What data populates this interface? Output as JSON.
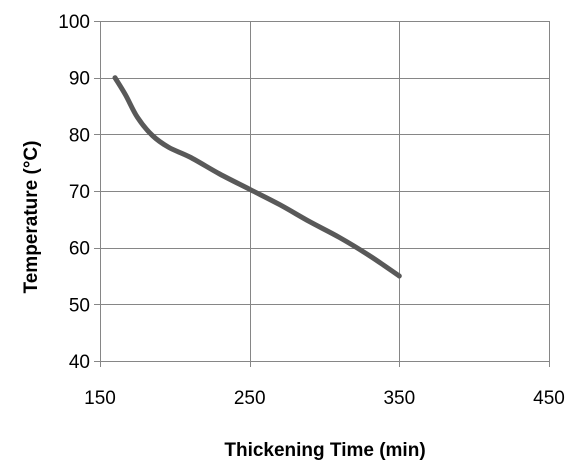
{
  "chart_data": {
    "type": "line",
    "title": "",
    "xlabel": "Thickening Time (min)",
    "ylabel": "Temperature (°C)",
    "xlim": [
      150,
      450
    ],
    "ylim": [
      40,
      100
    ],
    "x_ticks": [
      150,
      250,
      350,
      450
    ],
    "y_ticks": [
      40,
      50,
      60,
      70,
      80,
      90,
      100
    ],
    "x_tick_labels": [
      "150",
      "250",
      "350",
      "450"
    ],
    "y_tick_labels": [
      "40",
      "50",
      "60",
      "70",
      "80",
      "90",
      "100"
    ],
    "grid": true,
    "legend": "none",
    "series": [
      {
        "color": "#595959",
        "x": [
          160,
          167,
          175,
          185,
          196,
          210,
          230,
          250,
          270,
          290,
          310,
          330,
          350
        ],
        "y": [
          90,
          87,
          83,
          79.8,
          77.7,
          76,
          73,
          70.3,
          67.6,
          64.6,
          61.8,
          58.6,
          55
        ]
      }
    ]
  }
}
